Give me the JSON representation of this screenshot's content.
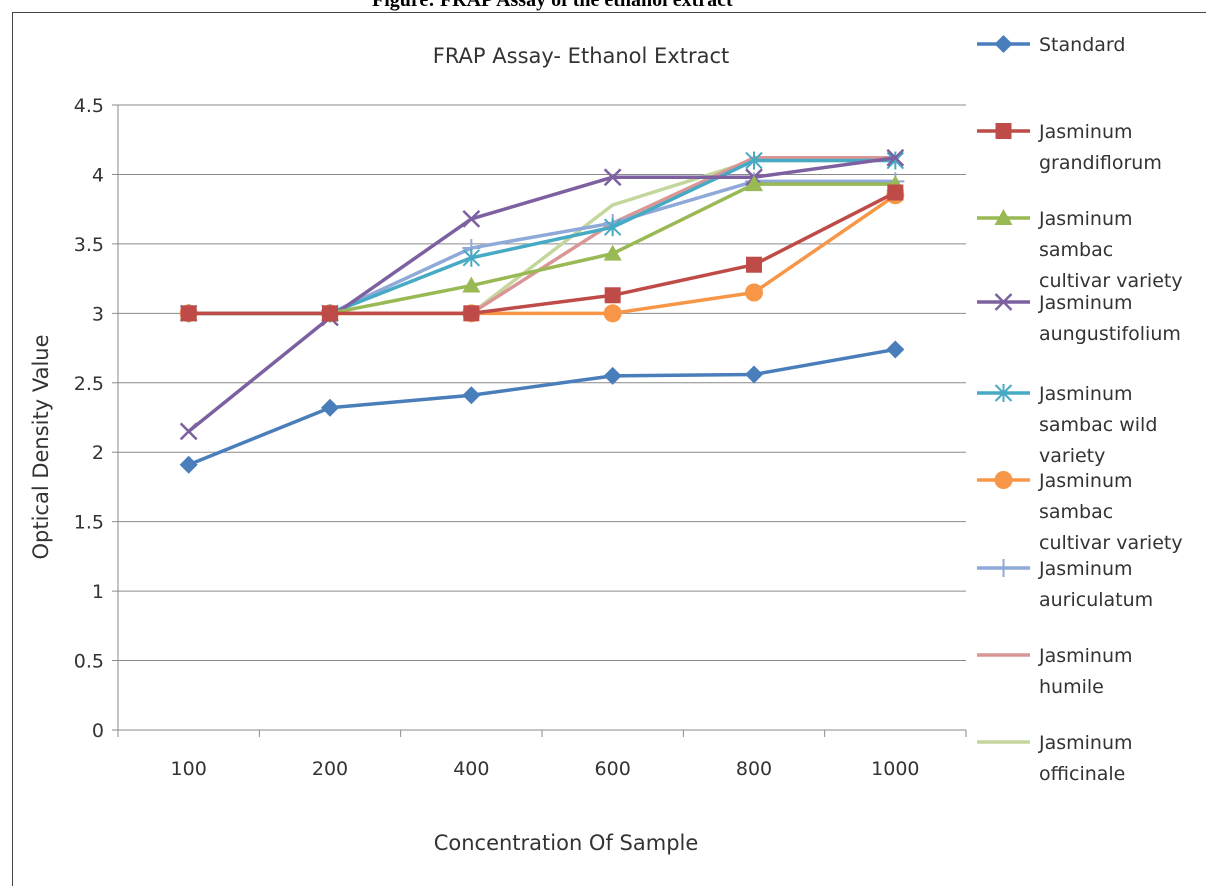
{
  "caption": "Figure: FRAP Assay of the ethanol extract",
  "chart_data": {
    "type": "line",
    "title": "FRAP Assay- Ethanol Extract",
    "xlabel": "Concentration Of Sample",
    "ylabel": "Optical Density Value",
    "categories": [
      "100",
      "200",
      "400",
      "600",
      "800",
      "1000"
    ],
    "ylim": [
      0,
      4.5
    ],
    "yticks": [
      "0",
      "0.5",
      "1",
      "1.5",
      "2",
      "2.5",
      "3",
      "3.5",
      "4",
      "4.5"
    ],
    "grid": "horizontal",
    "legend_position": "right",
    "series": [
      {
        "name": "Standard",
        "color": "#4a7ebb",
        "marker": "diamond",
        "values": [
          1.91,
          2.32,
          2.41,
          2.55,
          2.56,
          2.74
        ]
      },
      {
        "name": "Jasminum grandiflorum",
        "color": "#be4b48",
        "marker": "square",
        "values": [
          3.0,
          3.0,
          3.0,
          3.13,
          3.35,
          3.87
        ]
      },
      {
        "name": "Jasminum sambac cultivar variety",
        "color": "#98b954",
        "marker": "triangle",
        "values": [
          3.0,
          3.0,
          3.2,
          3.43,
          3.93,
          3.93
        ]
      },
      {
        "name": "Jasminum aungustifolium",
        "color": "#7d60a0",
        "marker": "x",
        "values": [
          2.15,
          2.97,
          3.68,
          3.98,
          3.98,
          4.12
        ]
      },
      {
        "name": "Jasminum sambac wild variety",
        "color": "#46aac4",
        "marker": "asterisk",
        "values": [
          3.0,
          3.0,
          3.4,
          3.62,
          4.1,
          4.1
        ]
      },
      {
        "name": "Jasminum sambac cultivar variety",
        "color": "#f79646",
        "marker": "circle",
        "values": [
          3.0,
          3.0,
          3.0,
          3.0,
          3.15,
          3.85
        ]
      },
      {
        "name": "Jasminum auriculatum",
        "color": "#8fa9d8",
        "marker": "plus",
        "values": [
          3.0,
          3.0,
          3.47,
          3.65,
          3.95,
          3.95
        ]
      },
      {
        "name": "Jasminum humile",
        "color": "#d99694",
        "marker": "none",
        "values": [
          3.0,
          3.0,
          3.0,
          3.65,
          4.12,
          4.12
        ]
      },
      {
        "name": "Jasminum officinale",
        "color": "#c3d69b",
        "marker": "none",
        "values": [
          3.0,
          3.0,
          3.0,
          3.78,
          4.1,
          4.1
        ]
      }
    ]
  },
  "legend_lines": [
    [
      "Standard"
    ],
    [
      "Jasminum",
      "grandiflorum"
    ],
    [
      "Jasminum",
      "sambac",
      "cultivar variety"
    ],
    [
      "Jasminum",
      "aungustifolium"
    ],
    [
      "Jasminum",
      "sambac wild",
      "variety"
    ],
    [
      "Jasminum",
      "sambac",
      "cultivar variety"
    ],
    [
      "Jasminum",
      "auriculatum"
    ],
    [
      "Jasminum",
      "humile"
    ],
    [
      "Jasminum",
      "officinale"
    ]
  ]
}
